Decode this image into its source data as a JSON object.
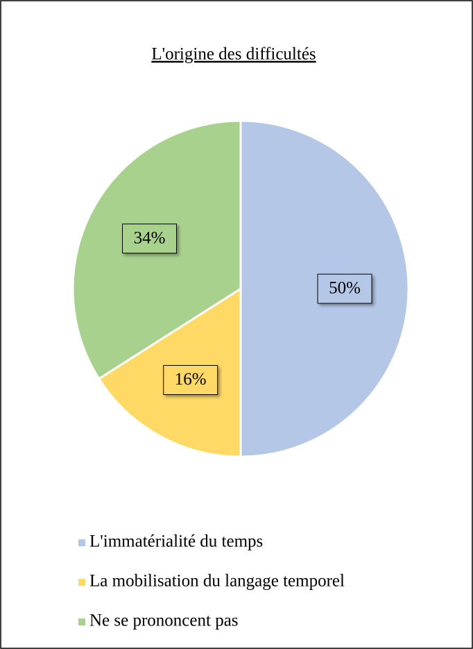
{
  "chart_data": {
    "type": "pie",
    "title": "L'origine des difficultés",
    "categories": [
      "L'immatérialité du temps",
      "La mobilisation du langage temporel",
      "Ne se prononcent pas"
    ],
    "values": [
      50,
      16,
      34
    ],
    "value_labels": [
      "50%",
      "16%",
      "34%"
    ],
    "colors": [
      "#b4c7e7",
      "#ffd966",
      "#a9d18e"
    ],
    "legend": "bottom"
  }
}
